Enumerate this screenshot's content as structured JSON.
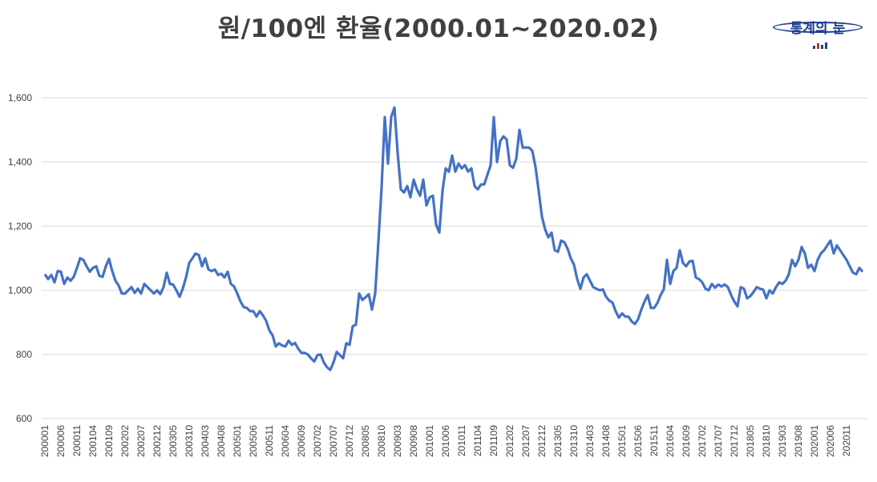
{
  "title": "원/100엔 환율(2000.01~2020.02)",
  "logo": {
    "text": "통계의 눈",
    "icon": "bar-chart-icon"
  },
  "colors": {
    "line": "#4472c4",
    "grid": "#d9d9d9",
    "text": "#404040",
    "logo": "#1f3f8f"
  },
  "chart_data": {
    "type": "line",
    "title": "원/100엔 환율(2000.01~2020.02)",
    "xlabel": "",
    "ylabel": "",
    "ylim": [
      600,
      1600
    ],
    "yticks": [
      600,
      800,
      1000,
      1200,
      1400,
      1600
    ],
    "ytick_labels": [
      "600",
      "800",
      "1,000",
      "1,200",
      "1,400",
      "1,600"
    ],
    "grid": true,
    "legend": "none",
    "x_tick_labels": [
      "200001",
      "200006",
      "200011",
      "200104",
      "200109",
      "200202",
      "200207",
      "200212",
      "200305",
      "200310",
      "200403",
      "200408",
      "200501",
      "200506",
      "200511",
      "200604",
      "200609",
      "200702",
      "200707",
      "200712",
      "200805",
      "200810",
      "200903",
      "200908",
      "201001",
      "201006",
      "201011",
      "201104",
      "201109",
      "201202",
      "201207",
      "201212",
      "201305",
      "201310",
      "201403",
      "201408",
      "201501",
      "201506",
      "201511",
      "201604",
      "201609",
      "201702",
      "201707",
      "201712",
      "201805",
      "201810",
      "201903",
      "201908",
      "202001",
      "202006",
      "202011"
    ],
    "series": [
      {
        "values": [
          1050,
          1035,
          1048,
          1025,
          1060,
          1058,
          1020,
          1040,
          1030,
          1042,
          1070,
          1100,
          1095,
          1075,
          1058,
          1070,
          1075,
          1045,
          1042,
          1075,
          1098,
          1060,
          1030,
          1015,
          990,
          990,
          1000,
          1010,
          992,
          1005,
          990,
          1020,
          1010,
          1000,
          990,
          1000,
          988,
          1010,
          1055,
          1020,
          1018,
          1000,
          980,
          1005,
          1040,
          1085,
          1100,
          1115,
          1110,
          1075,
          1100,
          1065,
          1060,
          1065,
          1048,
          1052,
          1040,
          1058,
          1020,
          1012,
          990,
          965,
          948,
          945,
          935,
          935,
          918,
          935,
          922,
          905,
          875,
          860,
          825,
          835,
          828,
          825,
          843,
          830,
          836,
          818,
          805,
          805,
          800,
          788,
          778,
          798,
          800,
          775,
          760,
          752,
          775,
          808,
          798,
          788,
          835,
          830,
          888,
          893,
          990,
          970,
          978,
          988,
          940,
          990,
          1150,
          1320,
          1540,
          1395,
          1540,
          1570,
          1430,
          1315,
          1305,
          1325,
          1290,
          1345,
          1315,
          1295,
          1345,
          1265,
          1290,
          1295,
          1205,
          1180,
          1310,
          1380,
          1370,
          1420,
          1370,
          1395,
          1380,
          1390,
          1370,
          1380,
          1325,
          1315,
          1330,
          1330,
          1360,
          1390,
          1540,
          1400,
          1465,
          1480,
          1470,
          1390,
          1382,
          1410,
          1500,
          1445,
          1445,
          1445,
          1435,
          1385,
          1310,
          1230,
          1190,
          1165,
          1180,
          1125,
          1120,
          1155,
          1150,
          1130,
          1100,
          1080,
          1035,
          1005,
          1040,
          1050,
          1030,
          1010,
          1005,
          1000,
          1003,
          980,
          968,
          962,
          935,
          915,
          928,
          918,
          918,
          903,
          895,
          910,
          940,
          965,
          985,
          945,
          945,
          960,
          985,
          1003,
          1095,
          1020,
          1060,
          1070,
          1125,
          1085,
          1075,
          1090,
          1092,
          1040,
          1035,
          1025,
          1005,
          1000,
          1020,
          1008,
          1018,
          1012,
          1018,
          1010,
          985,
          965,
          950,
          1010,
          1005,
          975,
          982,
          995,
          1010,
          1005,
          1002,
          975,
          1000,
          990,
          1010,
          1025,
          1020,
          1030,
          1050,
          1095,
          1075,
          1095,
          1135,
          1115,
          1070,
          1080,
          1060,
          1095,
          1115,
          1125,
          1140,
          1155,
          1115,
          1140,
          1125,
          1110,
          1095,
          1075,
          1055,
          1050,
          1070,
          1058
        ]
      }
    ]
  }
}
